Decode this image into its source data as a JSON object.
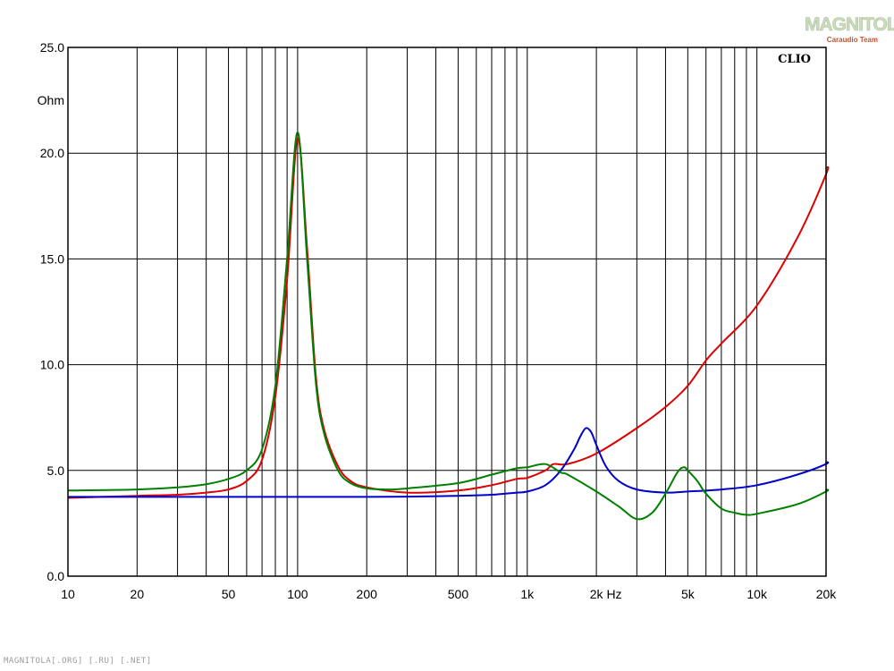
{
  "branding": {
    "logo_text": "MAGNITOLA",
    "logo_subtext": "Caraudio Team",
    "footer_text": "MAGNITOLA[.ORG] [.RU] [.NET]",
    "clio_label": "CLIO"
  },
  "chart_data": {
    "type": "line",
    "title": "",
    "xlabel": "Hz",
    "ylabel": "Ohm",
    "x_scale": "log",
    "xlim": [
      10,
      20000
    ],
    "ylim": [
      0,
      25
    ],
    "grid": true,
    "x_tick_labels": [
      {
        "value": 10,
        "label": "10"
      },
      {
        "value": 20,
        "label": "20"
      },
      {
        "value": 50,
        "label": "50"
      },
      {
        "value": 100,
        "label": "100"
      },
      {
        "value": 200,
        "label": "200"
      },
      {
        "value": 500,
        "label": "500"
      },
      {
        "value": 1000,
        "label": "1k"
      },
      {
        "value": 2000,
        "label": "2k"
      },
      {
        "value": 5000,
        "label": "5k"
      },
      {
        "value": 10000,
        "label": "10k"
      },
      {
        "value": 20000,
        "label": "20k"
      }
    ],
    "y_tick_labels": [
      {
        "value": 0,
        "label": "0.0"
      },
      {
        "value": 5,
        "label": "5.0"
      },
      {
        "value": 10,
        "label": "10.0"
      },
      {
        "value": 15,
        "label": "15.0"
      },
      {
        "value": 20,
        "label": "20.0"
      },
      {
        "value": 25,
        "label": "25.0"
      }
    ],
    "series": [
      {
        "color": "#dd0000",
        "points": [
          [
            10,
            3.7
          ],
          [
            20,
            3.8
          ],
          [
            30,
            3.85
          ],
          [
            40,
            3.95
          ],
          [
            50,
            4.1
          ],
          [
            60,
            4.5
          ],
          [
            70,
            5.5
          ],
          [
            80,
            8.5
          ],
          [
            90,
            14.0
          ],
          [
            100,
            20.7
          ],
          [
            110,
            15.5
          ],
          [
            120,
            9.5
          ],
          [
            130,
            7.0
          ],
          [
            150,
            5.2
          ],
          [
            170,
            4.5
          ],
          [
            200,
            4.2
          ],
          [
            300,
            3.95
          ],
          [
            500,
            4.05
          ],
          [
            700,
            4.3
          ],
          [
            900,
            4.6
          ],
          [
            1000,
            4.65
          ],
          [
            1200,
            5.0
          ],
          [
            1300,
            5.3
          ],
          [
            1500,
            5.3
          ],
          [
            2000,
            5.8
          ],
          [
            3000,
            7.0
          ],
          [
            4000,
            8.0
          ],
          [
            5000,
            9.0
          ],
          [
            6000,
            10.2
          ],
          [
            7000,
            11.0
          ],
          [
            10000,
            12.8
          ],
          [
            15000,
            16.0
          ],
          [
            20000,
            19.0
          ],
          [
            21000,
            19.3
          ]
        ]
      },
      {
        "color": "#0000cc",
        "points": [
          [
            10,
            3.75
          ],
          [
            50,
            3.75
          ],
          [
            100,
            3.75
          ],
          [
            200,
            3.75
          ],
          [
            300,
            3.76
          ],
          [
            500,
            3.8
          ],
          [
            700,
            3.85
          ],
          [
            900,
            3.95
          ],
          [
            1000,
            4.0
          ],
          [
            1200,
            4.3
          ],
          [
            1400,
            5.0
          ],
          [
            1600,
            6.0
          ],
          [
            1700,
            6.6
          ],
          [
            1800,
            7.0
          ],
          [
            1900,
            6.8
          ],
          [
            2000,
            6.2
          ],
          [
            2200,
            5.2
          ],
          [
            2500,
            4.5
          ],
          [
            3000,
            4.1
          ],
          [
            4000,
            3.95
          ],
          [
            5000,
            4.0
          ],
          [
            7000,
            4.1
          ],
          [
            10000,
            4.3
          ],
          [
            15000,
            4.8
          ],
          [
            20000,
            5.3
          ],
          [
            21000,
            5.4
          ]
        ]
      },
      {
        "color": "#008000",
        "points": [
          [
            10,
            4.05
          ],
          [
            20,
            4.1
          ],
          [
            30,
            4.2
          ],
          [
            40,
            4.35
          ],
          [
            50,
            4.6
          ],
          [
            60,
            5.0
          ],
          [
            70,
            6.0
          ],
          [
            80,
            9.0
          ],
          [
            90,
            15.0
          ],
          [
            100,
            21.0
          ],
          [
            110,
            15.0
          ],
          [
            120,
            9.2
          ],
          [
            130,
            6.8
          ],
          [
            150,
            5.0
          ],
          [
            170,
            4.4
          ],
          [
            200,
            4.15
          ],
          [
            250,
            4.1
          ],
          [
            300,
            4.15
          ],
          [
            500,
            4.4
          ],
          [
            700,
            4.8
          ],
          [
            900,
            5.1
          ],
          [
            1000,
            5.15
          ],
          [
            1200,
            5.3
          ],
          [
            1400,
            4.9
          ],
          [
            1500,
            4.8
          ],
          [
            2000,
            4.0
          ],
          [
            2500,
            3.3
          ],
          [
            3000,
            2.7
          ],
          [
            3500,
            3.0
          ],
          [
            4000,
            3.9
          ],
          [
            4500,
            4.9
          ],
          [
            4800,
            5.15
          ],
          [
            5000,
            5.0
          ],
          [
            5500,
            4.5
          ],
          [
            6000,
            3.9
          ],
          [
            7000,
            3.2
          ],
          [
            8000,
            3.0
          ],
          [
            9000,
            2.9
          ],
          [
            10000,
            2.95
          ],
          [
            15000,
            3.4
          ],
          [
            20000,
            4.0
          ],
          [
            21000,
            4.1
          ]
        ]
      }
    ]
  }
}
